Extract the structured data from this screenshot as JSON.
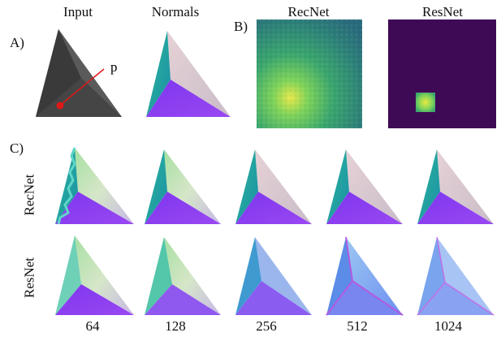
{
  "panel_labels": {
    "a": "A)",
    "b": "B)",
    "c": "C)"
  },
  "columns_top": {
    "input": "Input",
    "normals": "Normals",
    "recnet": "RecNet",
    "resnet": "ResNet"
  },
  "point_label": "p",
  "row_labels": {
    "recnet": "RecNet",
    "resnet": "ResNet"
  },
  "resolutions": [
    "64",
    "128",
    "256",
    "512",
    "1024"
  ],
  "colors": {
    "teal": "#1fa7a6",
    "pink": "#dcc7cc",
    "purple": "#8a3df0",
    "dark_bg": "#3f0a55",
    "arrow": "#e01818"
  }
}
